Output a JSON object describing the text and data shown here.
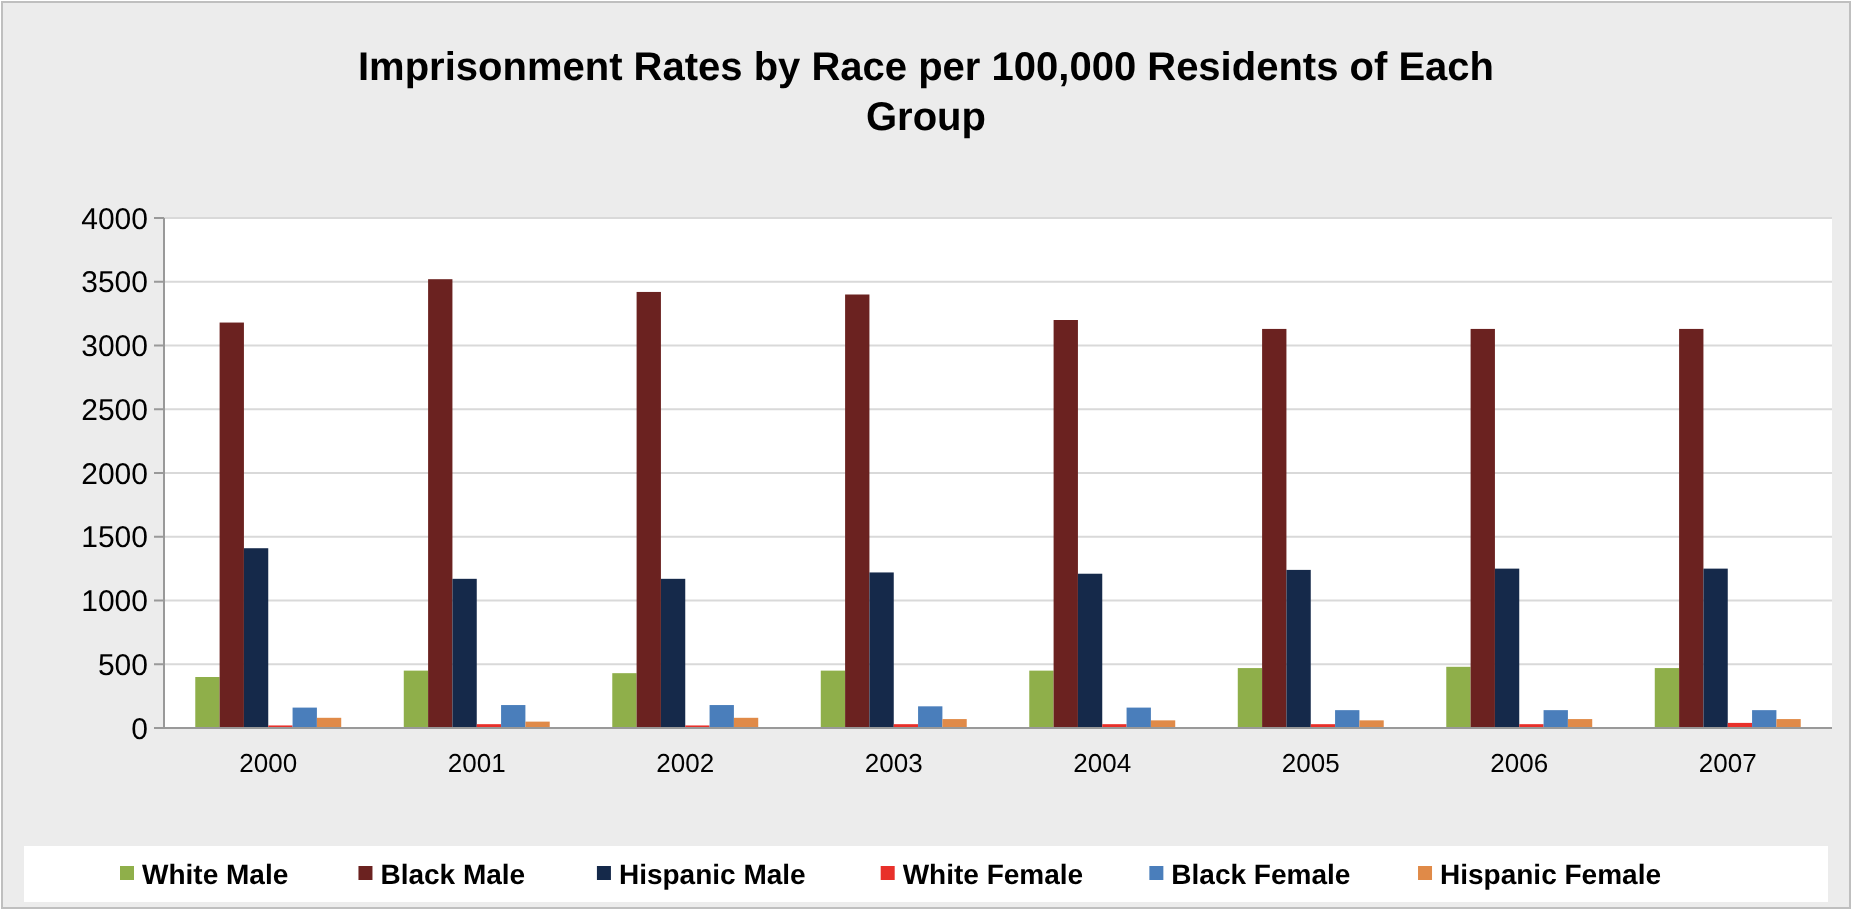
{
  "chart_data": {
    "type": "bar",
    "title": "Imprisonment Rates by Race per 100,000 Residents of Each Group",
    "categories": [
      "2000",
      "2001",
      "2002",
      "2003",
      "2004",
      "2005",
      "2006",
      "2007"
    ],
    "series": [
      {
        "name": "White Male",
        "color": "#8faf4a",
        "values": [
          400,
          450,
          430,
          450,
          450,
          470,
          480,
          470
        ]
      },
      {
        "name": "Black Male",
        "color": "#6b2220",
        "values": [
          3180,
          3520,
          3420,
          3400,
          3200,
          3130,
          3130,
          3130
        ]
      },
      {
        "name": "Hispanic Male",
        "color": "#15294a",
        "values": [
          1410,
          1170,
          1170,
          1220,
          1210,
          1240,
          1250,
          1250
        ]
      },
      {
        "name": "White Female",
        "color": "#e8302a",
        "values": [
          20,
          30,
          20,
          30,
          30,
          30,
          30,
          40
        ]
      },
      {
        "name": "Black Female",
        "color": "#4a7ebb",
        "values": [
          160,
          180,
          180,
          170,
          160,
          140,
          140,
          140
        ]
      },
      {
        "name": "Hispanic Female",
        "color": "#e08a48",
        "values": [
          80,
          50,
          80,
          70,
          60,
          60,
          70,
          70
        ]
      }
    ],
    "ylim": [
      0,
      4000
    ],
    "yticks": [
      0,
      500,
      1000,
      1500,
      2000,
      2500,
      3000,
      3500,
      4000
    ],
    "grid": "y",
    "legend": "bottom"
  }
}
